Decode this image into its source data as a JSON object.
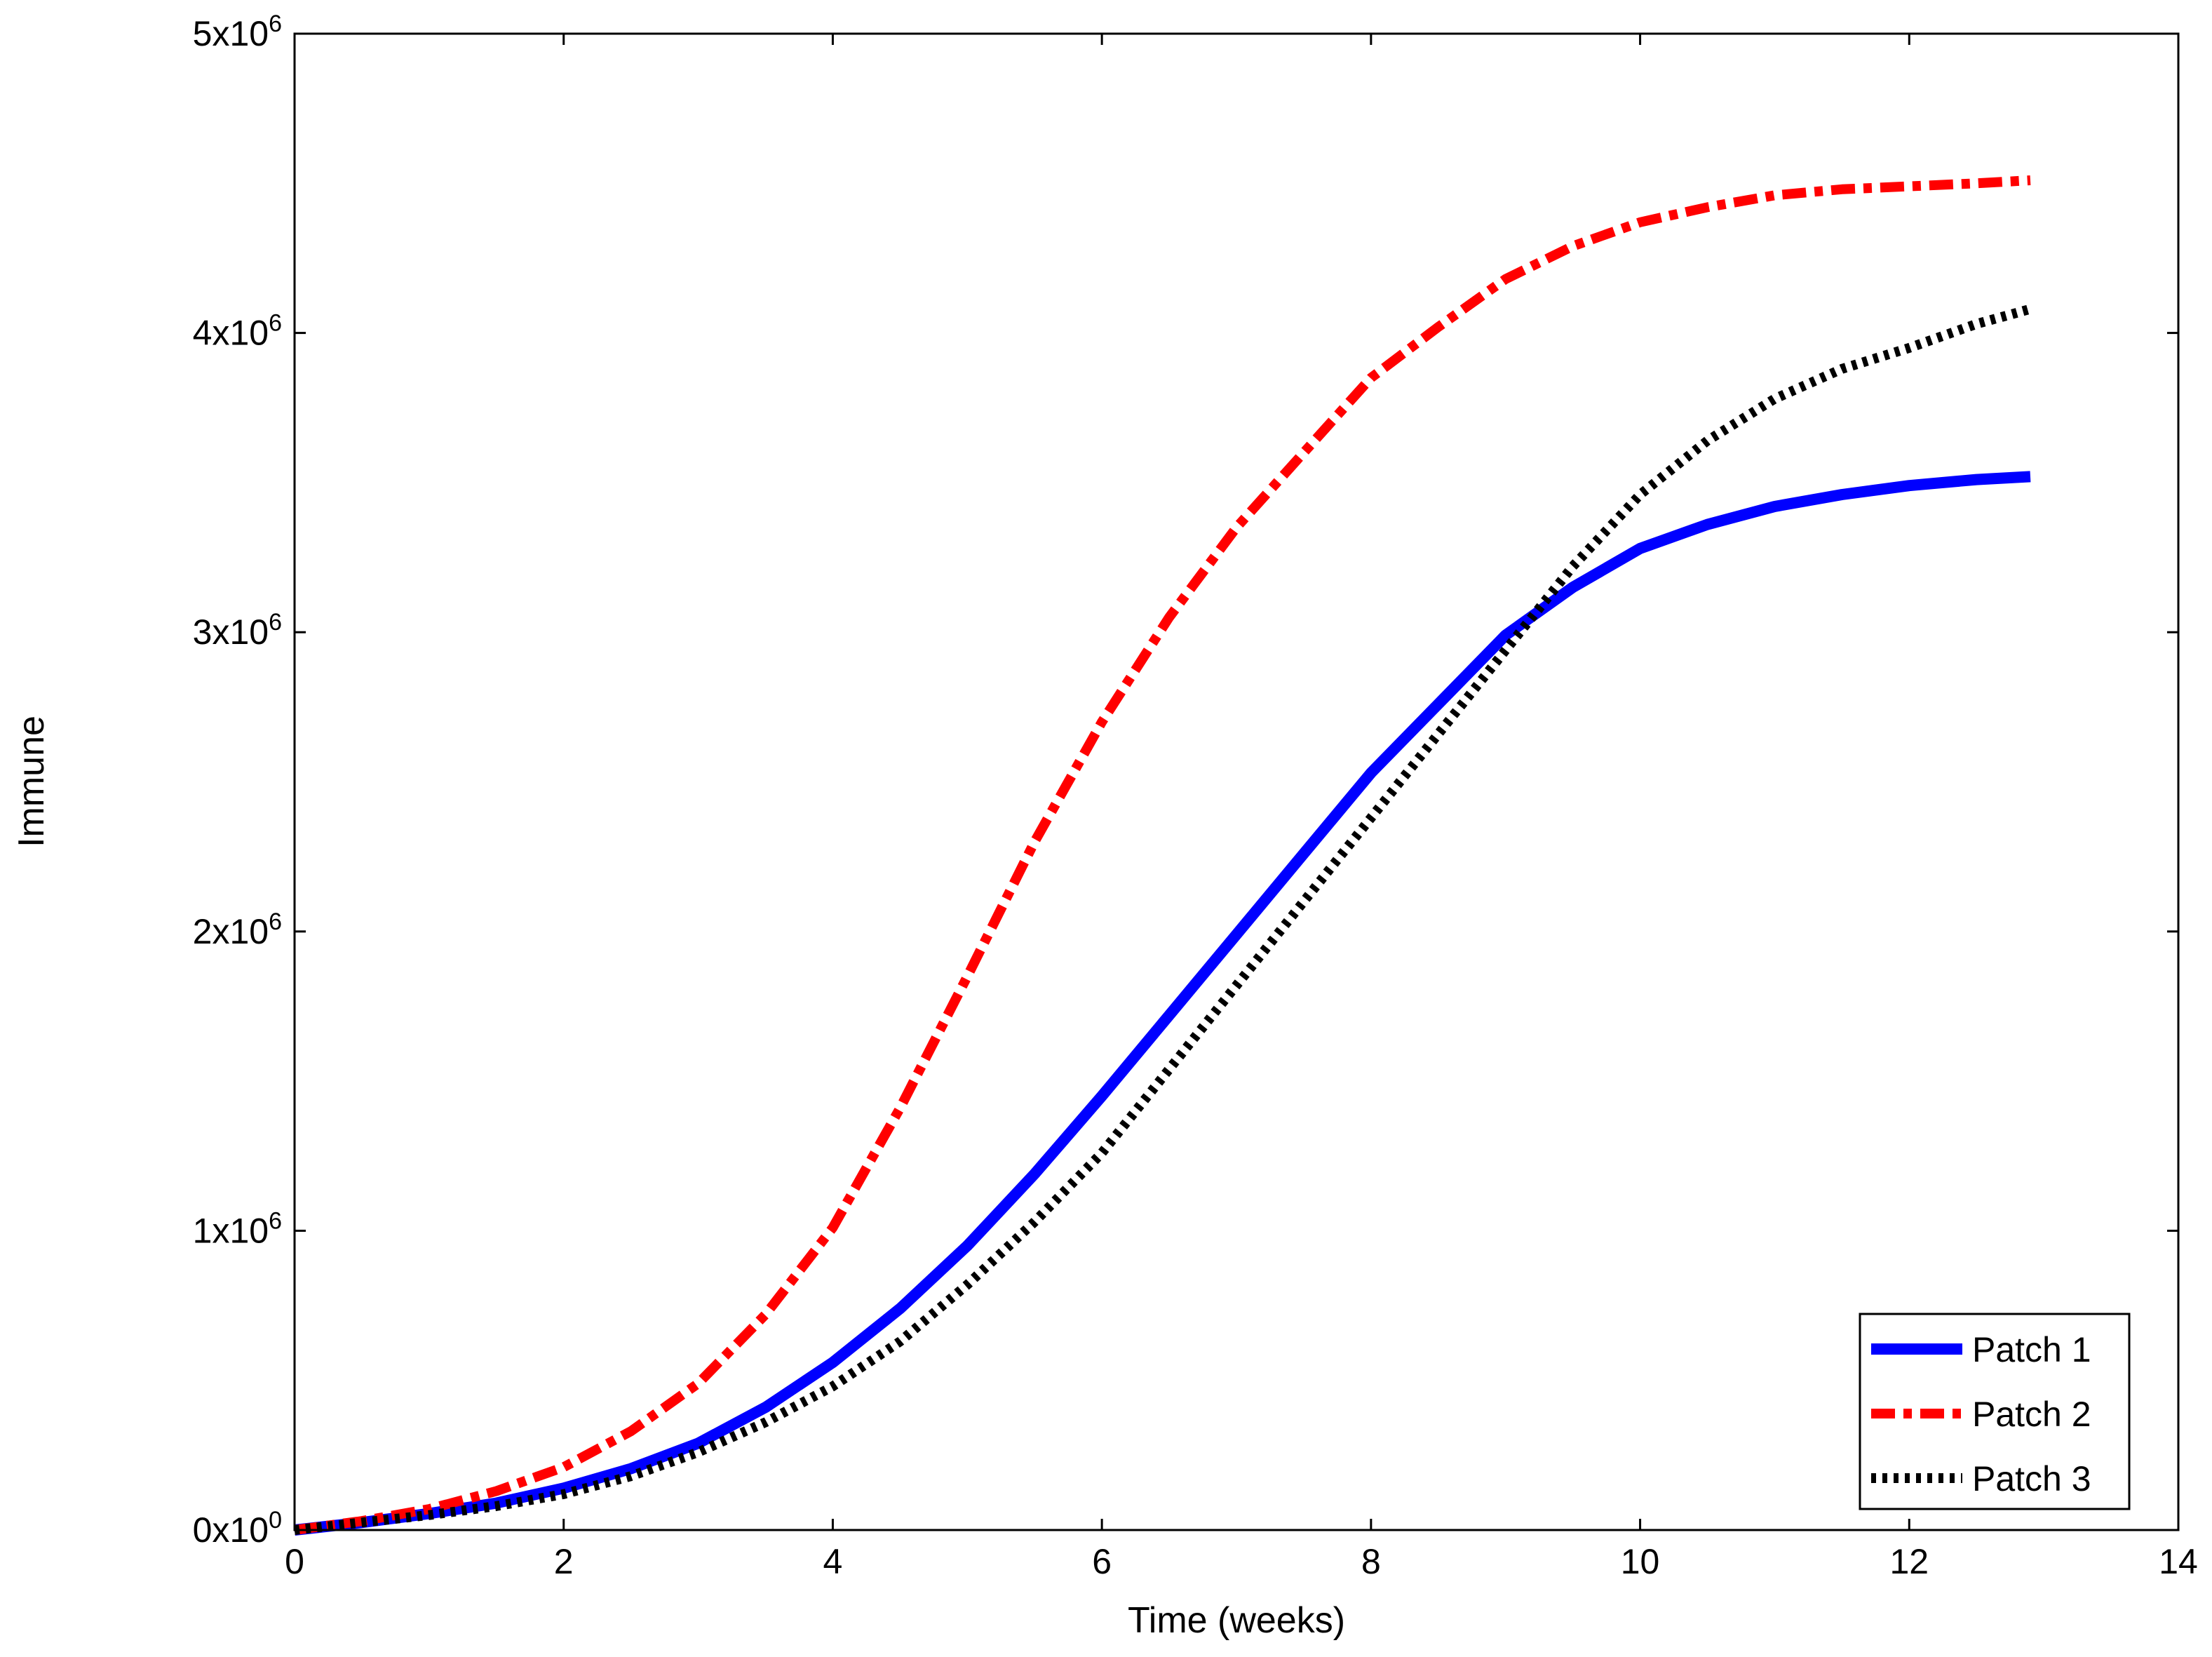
{
  "chart_data": {
    "type": "line",
    "title": "",
    "xlabel": "Time (weeks)",
    "ylabel": "Immune",
    "xlim": [
      0,
      14
    ],
    "ylim": [
      0,
      5000000
    ],
    "grid": false,
    "legend_position": "bottom-right",
    "x_ticks": [
      0,
      2,
      4,
      6,
      8,
      10,
      12,
      14
    ],
    "x_tick_labels": [
      "0",
      "2",
      "4",
      "6",
      "8",
      "10",
      "12",
      "14"
    ],
    "y_ticks": [
      {
        "value": 0,
        "mantissa": "0x10",
        "exponent": "0"
      },
      {
        "value": 1000000,
        "mantissa": "1x10",
        "exponent": "6"
      },
      {
        "value": 2000000,
        "mantissa": "2x10",
        "exponent": "6"
      },
      {
        "value": 3000000,
        "mantissa": "3x10",
        "exponent": "6"
      },
      {
        "value": 4000000,
        "mantissa": "4x10",
        "exponent": "6"
      },
      {
        "value": 5000000,
        "mantissa": "5x10",
        "exponent": "6"
      }
    ],
    "x": [
      0,
      0.5,
      1,
      1.5,
      2,
      2.5,
      3,
      3.5,
      4,
      4.5,
      5,
      5.5,
      6,
      6.5,
      7,
      7.5,
      8,
      8.5,
      9,
      9.5,
      10,
      10.5,
      11,
      11.5,
      12,
      12.5,
      12.9
    ],
    "series": [
      {
        "name": "Patch 1",
        "color": "#0000ff",
        "style": "solid",
        "values": [
          0,
          25000,
          55000,
          90000,
          140000,
          205000,
          290000,
          410000,
          560000,
          740000,
          950000,
          1190000,
          1450000,
          1720000,
          1990000,
          2260000,
          2530000,
          2760000,
          2990000,
          3150000,
          3280000,
          3360000,
          3420000,
          3460000,
          3490000,
          3510000,
          3520000
        ]
      },
      {
        "name": "Patch 2",
        "color": "#ff0000",
        "style": "dashdot",
        "values": [
          0,
          30000,
          70000,
          130000,
          210000,
          330000,
          490000,
          720000,
          1010000,
          1410000,
          1850000,
          2300000,
          2700000,
          3050000,
          3350000,
          3600000,
          3850000,
          4020000,
          4180000,
          4290000,
          4370000,
          4420000,
          4460000,
          4480000,
          4490000,
          4500000,
          4510000
        ]
      },
      {
        "name": "Patch 3",
        "color": "#000000",
        "style": "dotted",
        "values": [
          0,
          25000,
          50000,
          80000,
          120000,
          180000,
          260000,
          360000,
          480000,
          630000,
          820000,
          1030000,
          1260000,
          1540000,
          1820000,
          2100000,
          2380000,
          2660000,
          2940000,
          3220000,
          3460000,
          3640000,
          3780000,
          3880000,
          3950000,
          4030000,
          4080000
        ]
      }
    ]
  }
}
